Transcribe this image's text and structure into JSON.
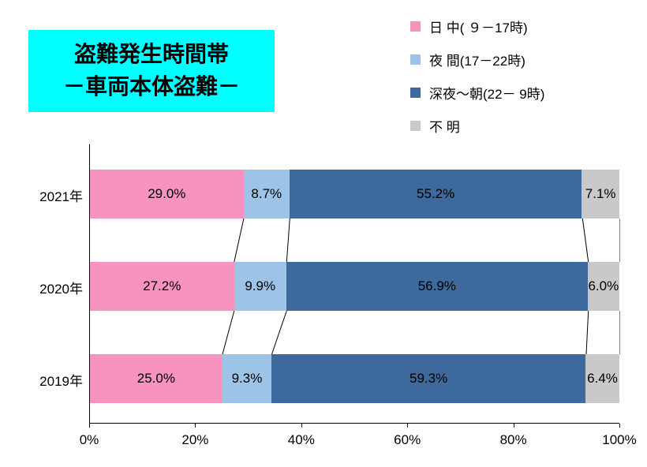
{
  "title": {
    "line1": "盗難発生時間帯",
    "line2": "－車両本体盗難－",
    "bg_color": "#00FFFF",
    "text_color": "#000000"
  },
  "chart_data": {
    "type": "bar",
    "orientation": "horizontal",
    "stacked": true,
    "categories": [
      "2021年",
      "2020年",
      "2019年"
    ],
    "series": [
      {
        "key": "daytime",
        "name": "日 中( ９－17時)",
        "color": "#F892BE",
        "values": [
          29.0,
          27.2,
          25.0
        ],
        "labels": [
          "29.0%",
          "27.2%",
          "25.0%"
        ]
      },
      {
        "key": "evening",
        "name": "夜 間(17－22時)",
        "color": "#9DC3E6",
        "values": [
          8.7,
          9.9,
          9.3
        ],
        "labels": [
          "8.7%",
          "9.9%",
          "9.3%"
        ]
      },
      {
        "key": "late-night",
        "name": "深夜～朝(22－ 9時)",
        "color": "#3E699C",
        "values": [
          55.2,
          56.9,
          59.3
        ],
        "labels": [
          "55.2%",
          "56.9%",
          "59.3%"
        ]
      },
      {
        "key": "unknown",
        "name": "不 明",
        "color": "#C9C9C9",
        "values": [
          7.1,
          6.0,
          6.4
        ],
        "labels": [
          "7.1%",
          "6.0%",
          "6.4%"
        ]
      }
    ],
    "x_ticks": [
      "0%",
      "20%",
      "40%",
      "60%",
      "80%",
      "100%"
    ],
    "xlim": [
      0,
      100
    ],
    "legend_position": "top-right",
    "grid": false,
    "connector_lines": true,
    "axis_color": "#000000"
  }
}
